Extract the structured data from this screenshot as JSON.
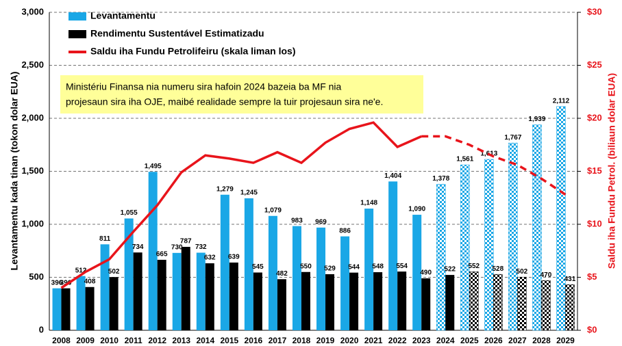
{
  "chart_data": {
    "type": "bar",
    "annotation": [
      "Ministériu Finansa nia numeru sira hafoin 2024 bazeia ba MF nia",
      "projesaun sira iha OJE, maibé realidade sempre la tuir projesaun sira ne'e."
    ],
    "ylabel": "Levantamentu kada tinan (tokon dolar EUA)",
    "y2label": "Saldu iha Fundu Petrol. (biliaun dolar EUA)",
    "categories": [
      "2008",
      "2009",
      "2010",
      "2011",
      "2012",
      "2013",
      "2014",
      "2015",
      "2016",
      "2017",
      "2018",
      "2019",
      "2020",
      "2021",
      "2022",
      "2023",
      "2024",
      "2025",
      "2026",
      "2027",
      "2028",
      "2029"
    ],
    "series": [
      {
        "name": "Levantamentu",
        "color": "#1aa7e6",
        "pattern_from": "2024",
        "values": [
          396,
          512,
          811,
          1055,
          1495,
          730,
          732,
          1279,
          1245,
          1079,
          983,
          969,
          886,
          1148,
          1404,
          1090,
          1378,
          1561,
          1613,
          1767,
          1939,
          2112
        ],
        "value_labels": [
          "396",
          "512",
          "811",
          "1,055",
          "1,495",
          "730",
          "732",
          "1,279",
          "1,245",
          "1,079",
          "983",
          "969",
          "886",
          "1,148",
          "1,404",
          "1,090",
          "1,378",
          "1,561",
          "1,613",
          "1,767",
          "1,939",
          "2,112"
        ]
      },
      {
        "name": "Rendimentu Sustentável Estimatizadu",
        "color": "#000000",
        "pattern_from": "2025",
        "values": [
          396,
          408,
          502,
          734,
          665,
          787,
          632,
          639,
          545,
          482,
          550,
          529,
          544,
          548,
          554,
          490,
          522,
          552,
          528,
          502,
          470,
          431
        ]
      },
      {
        "name": "Saldu iha Fundu Petrolifeiru (skala liman los)",
        "color": "#e8141b",
        "type": "line",
        "axis": "y2",
        "dash_from": "2023",
        "values": [
          4.0,
          5.5,
          6.7,
          9.3,
          11.8,
          14.9,
          16.5,
          16.2,
          15.8,
          16.8,
          15.8,
          17.7,
          19.0,
          19.6,
          17.3,
          18.3,
          18.3,
          17.5,
          16.4,
          15.6,
          14.3,
          12.8
        ]
      }
    ],
    "ylim": [
      0,
      3000
    ],
    "yticks": [
      0,
      500,
      {
        "value": 1000,
        "label": "1,000"
      },
      {
        "value": 1500,
        "label": "1,500"
      },
      {
        "value": 2000,
        "label": "2,000"
      },
      {
        "value": 2500,
        "label": "2,500"
      },
      {
        "value": 3000,
        "label": "3,000"
      }
    ],
    "y2lim": [
      0,
      30
    ],
    "y2ticks": [
      {
        "value": 0,
        "label": "$0"
      },
      {
        "value": 5,
        "label": "$5"
      },
      {
        "value": 10,
        "label": "$10"
      },
      {
        "value": 15,
        "label": "$15"
      },
      {
        "value": 20,
        "label": "$20"
      },
      {
        "value": 25,
        "label": "$25"
      },
      {
        "value": 30,
        "label": "$30"
      }
    ],
    "grid": true,
    "legend": "upper left"
  }
}
